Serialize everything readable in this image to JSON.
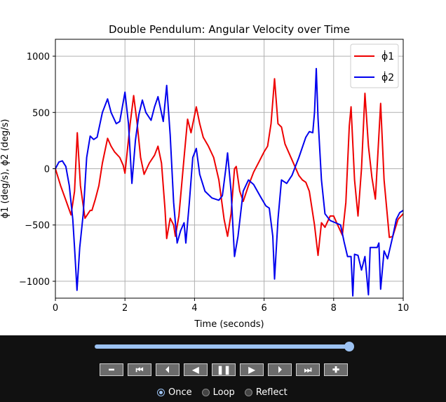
{
  "chart_data": {
    "type": "line",
    "title": "Double Pendulum: Angular Velocity over Time",
    "xlabel": "Time (seconds)",
    "ylabel": "ϕ1 (deg/s), ϕ2 (deg/s)",
    "xlim": [
      0,
      10
    ],
    "ylim": [
      -1150,
      1150
    ],
    "xticks": [
      0,
      2,
      4,
      6,
      8,
      10
    ],
    "yticks": [
      -1000,
      -500,
      0,
      500,
      1000
    ],
    "grid": true,
    "legend_position": "top-right",
    "series": [
      {
        "name": "ϕ1",
        "legend_symbol": "ϕ̇",
        "legend_subscript": "1",
        "color": "#ee0000",
        "points": [
          [
            0,
            0
          ],
          [
            0.15,
            -150
          ],
          [
            0.3,
            -280
          ],
          [
            0.45,
            -410
          ],
          [
            0.55,
            -200
          ],
          [
            0.63,
            320
          ],
          [
            0.72,
            -150
          ],
          [
            0.85,
            -440
          ],
          [
            1.0,
            -370
          ],
          [
            1.05,
            -370
          ],
          [
            1.15,
            -270
          ],
          [
            1.25,
            -150
          ],
          [
            1.35,
            50
          ],
          [
            1.5,
            270
          ],
          [
            1.6,
            200
          ],
          [
            1.7,
            150
          ],
          [
            1.85,
            100
          ],
          [
            1.95,
            30
          ],
          [
            2.0,
            -40
          ],
          [
            2.15,
            400
          ],
          [
            2.25,
            650
          ],
          [
            2.35,
            400
          ],
          [
            2.45,
            100
          ],
          [
            2.55,
            -50
          ],
          [
            2.7,
            50
          ],
          [
            2.85,
            120
          ],
          [
            2.95,
            200
          ],
          [
            3.05,
            50
          ],
          [
            3.15,
            -350
          ],
          [
            3.2,
            -620
          ],
          [
            3.3,
            -440
          ],
          [
            3.4,
            -500
          ],
          [
            3.45,
            -600
          ],
          [
            3.55,
            -420
          ],
          [
            3.7,
            100
          ],
          [
            3.8,
            440
          ],
          [
            3.9,
            320
          ],
          [
            4.05,
            550
          ],
          [
            4.15,
            400
          ],
          [
            4.25,
            280
          ],
          [
            4.4,
            200
          ],
          [
            4.55,
            100
          ],
          [
            4.7,
            -100
          ],
          [
            4.85,
            -450
          ],
          [
            4.95,
            -600
          ],
          [
            5.05,
            -400
          ],
          [
            5.15,
            0
          ],
          [
            5.2,
            20
          ],
          [
            5.3,
            -200
          ],
          [
            5.4,
            -290
          ],
          [
            5.55,
            -150
          ],
          [
            5.7,
            -30
          ],
          [
            5.85,
            60
          ],
          [
            6.0,
            150
          ],
          [
            6.1,
            200
          ],
          [
            6.2,
            400
          ],
          [
            6.3,
            800
          ],
          [
            6.4,
            400
          ],
          [
            6.5,
            370
          ],
          [
            6.6,
            220
          ],
          [
            6.8,
            80
          ],
          [
            7.0,
            -60
          ],
          [
            7.1,
            -100
          ],
          [
            7.2,
            -120
          ],
          [
            7.3,
            -200
          ],
          [
            7.45,
            -500
          ],
          [
            7.55,
            -770
          ],
          [
            7.65,
            -480
          ],
          [
            7.75,
            -520
          ],
          [
            7.9,
            -420
          ],
          [
            8.0,
            -420
          ],
          [
            8.1,
            -490
          ],
          [
            8.25,
            -590
          ],
          [
            8.35,
            -300
          ],
          [
            8.45,
            380
          ],
          [
            8.5,
            550
          ],
          [
            8.6,
            -100
          ],
          [
            8.7,
            -420
          ],
          [
            8.8,
            0
          ],
          [
            8.9,
            670
          ],
          [
            9.0,
            200
          ],
          [
            9.1,
            -80
          ],
          [
            9.2,
            -270
          ],
          [
            9.35,
            580
          ],
          [
            9.45,
            -100
          ],
          [
            9.6,
            -610
          ],
          [
            9.7,
            -600
          ],
          [
            9.85,
            -450
          ],
          [
            10,
            -400
          ]
        ]
      },
      {
        "name": "ϕ2",
        "legend_symbol": "ϕ̇",
        "legend_subscript": "2",
        "color": "#0000ee",
        "points": [
          [
            0,
            0
          ],
          [
            0.1,
            60
          ],
          [
            0.2,
            70
          ],
          [
            0.3,
            20
          ],
          [
            0.4,
            -150
          ],
          [
            0.5,
            -450
          ],
          [
            0.55,
            -700
          ],
          [
            0.62,
            -1080
          ],
          [
            0.7,
            -700
          ],
          [
            0.8,
            -400
          ],
          [
            0.9,
            100
          ],
          [
            1.0,
            290
          ],
          [
            1.1,
            260
          ],
          [
            1.2,
            280
          ],
          [
            1.35,
            500
          ],
          [
            1.5,
            620
          ],
          [
            1.6,
            500
          ],
          [
            1.75,
            400
          ],
          [
            1.85,
            420
          ],
          [
            2.0,
            680
          ],
          [
            2.1,
            400
          ],
          [
            2.2,
            -130
          ],
          [
            2.3,
            250
          ],
          [
            2.4,
            480
          ],
          [
            2.5,
            610
          ],
          [
            2.6,
            500
          ],
          [
            2.75,
            430
          ],
          [
            2.85,
            550
          ],
          [
            2.95,
            640
          ],
          [
            3.1,
            420
          ],
          [
            3.2,
            740
          ],
          [
            3.3,
            300
          ],
          [
            3.4,
            -300
          ],
          [
            3.5,
            -660
          ],
          [
            3.6,
            -550
          ],
          [
            3.7,
            -480
          ],
          [
            3.75,
            -660
          ],
          [
            3.85,
            -300
          ],
          [
            3.95,
            100
          ],
          [
            4.05,
            180
          ],
          [
            4.15,
            -50
          ],
          [
            4.3,
            -200
          ],
          [
            4.5,
            -260
          ],
          [
            4.7,
            -280
          ],
          [
            4.8,
            -240
          ],
          [
            4.9,
            0
          ],
          [
            4.95,
            140
          ],
          [
            5.05,
            -200
          ],
          [
            5.15,
            -780
          ],
          [
            5.25,
            -600
          ],
          [
            5.4,
            -200
          ],
          [
            5.55,
            -100
          ],
          [
            5.7,
            -140
          ],
          [
            5.9,
            -250
          ],
          [
            6.05,
            -330
          ],
          [
            6.15,
            -350
          ],
          [
            6.25,
            -600
          ],
          [
            6.3,
            -980
          ],
          [
            6.4,
            -450
          ],
          [
            6.5,
            -100
          ],
          [
            6.65,
            -130
          ],
          [
            6.8,
            -60
          ],
          [
            7.0,
            100
          ],
          [
            7.2,
            280
          ],
          [
            7.3,
            330
          ],
          [
            7.4,
            320
          ],
          [
            7.45,
            500
          ],
          [
            7.5,
            890
          ],
          [
            7.55,
            450
          ],
          [
            7.65,
            -100
          ],
          [
            7.75,
            -400
          ],
          [
            7.9,
            -460
          ],
          [
            8.05,
            -480
          ],
          [
            8.2,
            -500
          ],
          [
            8.3,
            -650
          ],
          [
            8.4,
            -780
          ],
          [
            8.5,
            -780
          ],
          [
            8.55,
            -1130
          ],
          [
            8.6,
            -760
          ],
          [
            8.7,
            -770
          ],
          [
            8.8,
            -900
          ],
          [
            8.9,
            -780
          ],
          [
            9.0,
            -1120
          ],
          [
            9.05,
            -700
          ],
          [
            9.15,
            -700
          ],
          [
            9.25,
            -700
          ],
          [
            9.3,
            -660
          ],
          [
            9.35,
            -1070
          ],
          [
            9.45,
            -730
          ],
          [
            9.55,
            -800
          ],
          [
            9.7,
            -600
          ],
          [
            9.8,
            -450
          ],
          [
            9.9,
            -390
          ],
          [
            10,
            -370
          ]
        ]
      }
    ]
  },
  "controls": {
    "slider_value": 1.0,
    "buttons": [
      {
        "name": "decrease-speed-button",
        "icon": "minus-icon",
        "glyph": "━"
      },
      {
        "name": "first-frame-button",
        "icon": "skip-to-start-icon",
        "glyph": "⏮"
      },
      {
        "name": "step-back-button",
        "icon": "step-back-icon",
        "glyph": "⏴"
      },
      {
        "name": "play-reverse-button",
        "icon": "play-reverse-icon",
        "glyph": "◀"
      },
      {
        "name": "pause-button",
        "icon": "pause-icon",
        "glyph": "❚❚"
      },
      {
        "name": "play-button",
        "icon": "play-icon",
        "glyph": "▶"
      },
      {
        "name": "step-forward-button",
        "icon": "step-forward-icon",
        "glyph": "⏵"
      },
      {
        "name": "last-frame-button",
        "icon": "skip-to-end-icon",
        "glyph": "⏭"
      },
      {
        "name": "increase-speed-button",
        "icon": "plus-icon",
        "glyph": "✚"
      }
    ],
    "modes": [
      {
        "label": "Once",
        "selected": true
      },
      {
        "label": "Loop",
        "selected": false
      },
      {
        "label": "Reflect",
        "selected": false
      }
    ]
  }
}
